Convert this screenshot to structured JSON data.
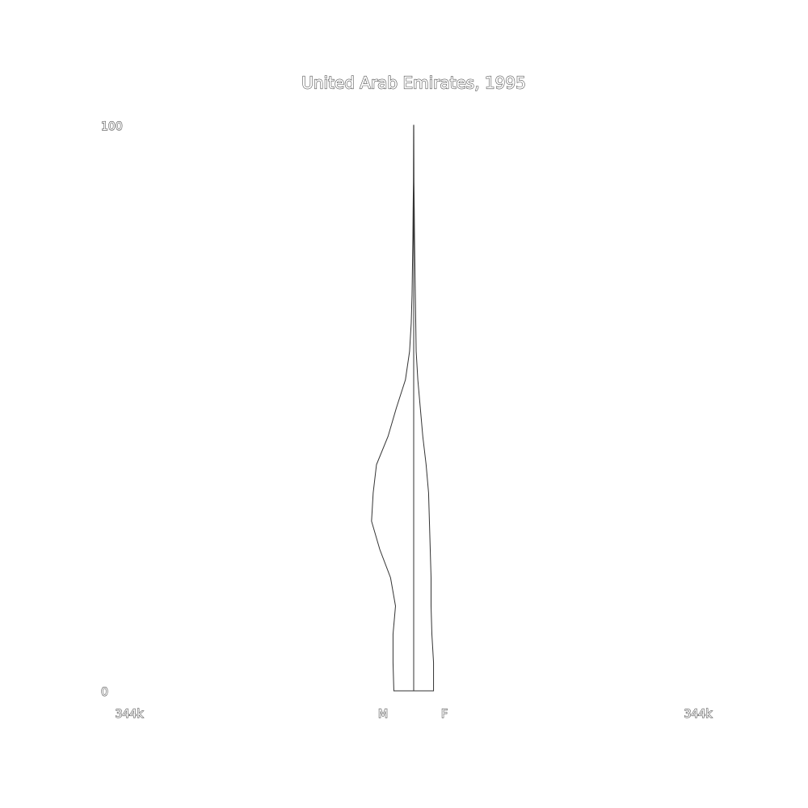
{
  "chart_data": {
    "type": "pyramid",
    "title": "United Arab Emirates, 1995",
    "y": [
      0,
      5,
      10,
      15,
      20,
      25,
      30,
      35,
      40,
      45,
      50,
      55,
      60,
      65,
      70,
      75,
      80,
      85,
      90,
      95,
      100
    ],
    "ylim": [
      0,
      100
    ],
    "yticks": [
      0,
      100
    ],
    "xlim": [
      -344000,
      344000
    ],
    "xticks": [
      {
        "value": -344000,
        "label": "344k"
      },
      {
        "value": 344000,
        "label": "344k"
      }
    ],
    "series": [
      {
        "name": "M",
        "color": "#ffffff",
        "values": [
          24000,
          25000,
          25000,
          22000,
          28000,
          41000,
          51000,
          49000,
          45000,
          31000,
          21000,
          10000,
          5000,
          3000,
          2000,
          1500,
          1000,
          700,
          300,
          200,
          100
        ]
      },
      {
        "name": "F",
        "color": "#ffffff",
        "values": [
          24000,
          24000,
          22000,
          21000,
          21000,
          20000,
          19000,
          18000,
          15000,
          11000,
          8000,
          5000,
          3000,
          2500,
          2000,
          1500,
          1000,
          700,
          300,
          200,
          100
        ]
      }
    ]
  }
}
